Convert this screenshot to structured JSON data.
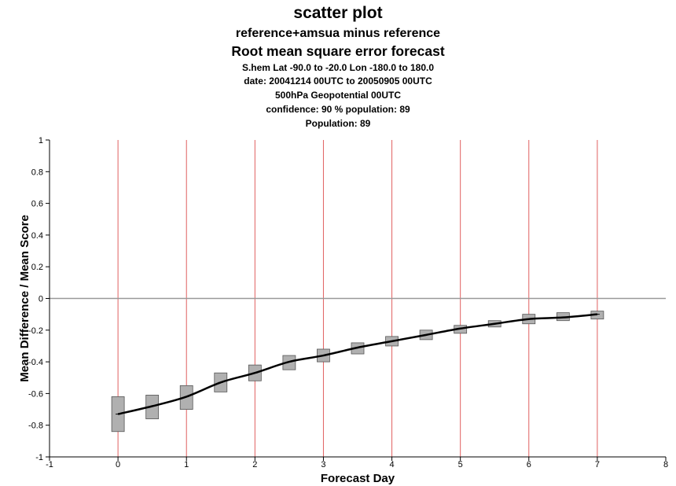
{
  "chart_data": {
    "type": "scatter",
    "title": "scatter plot",
    "subtitles": [
      "reference+amsua minus reference",
      "Root mean square error forecast",
      "S.hem  Lat  -90.0 to -20.0 Lon  -180.0 to  180.0",
      "date: 20041214 00UTC to 20050905 00UTC",
      "500hPa Geopotential 00UTC",
      "confidence: 90 %  population: 89",
      "Population: 89"
    ],
    "xlabel": "Forecast Day",
    "ylabel": "Mean Difference / Mean Score",
    "xlim": [
      -1,
      8
    ],
    "ylim": [
      -1,
      1
    ],
    "xticks": [
      "-1",
      "0",
      "1",
      "2",
      "3",
      "4",
      "5",
      "6",
      "7",
      "8"
    ],
    "yticks": [
      "1",
      "0.8",
      "0.6",
      "0.4",
      "0.2",
      "0",
      "-0.2",
      "-0.4",
      "-0.6",
      "-0.8",
      "-1"
    ],
    "grid": "vertical",
    "colors": {
      "grid": "#e06060",
      "zero_line": "#999999",
      "box_fill": "#b0b0b0",
      "line": "#000000"
    },
    "series": [
      {
        "x": [
          0,
          0.5,
          1,
          1.5,
          2,
          2.5,
          3,
          3.5,
          4,
          4.5,
          5,
          5.5,
          6,
          6.5,
          7
        ],
        "mean": [
          -0.73,
          -0.68,
          -0.62,
          -0.53,
          -0.47,
          -0.4,
          -0.36,
          -0.31,
          -0.27,
          -0.23,
          -0.19,
          -0.16,
          -0.13,
          -0.12,
          -0.1
        ],
        "lower": [
          -0.84,
          -0.76,
          -0.7,
          -0.59,
          -0.52,
          -0.45,
          -0.4,
          -0.35,
          -0.3,
          -0.26,
          -0.22,
          -0.18,
          -0.16,
          -0.14,
          -0.13
        ],
        "upper": [
          -0.62,
          -0.61,
          -0.55,
          -0.47,
          -0.42,
          -0.36,
          -0.32,
          -0.28,
          -0.24,
          -0.2,
          -0.17,
          -0.14,
          -0.1,
          -0.09,
          -0.08
        ]
      }
    ]
  }
}
